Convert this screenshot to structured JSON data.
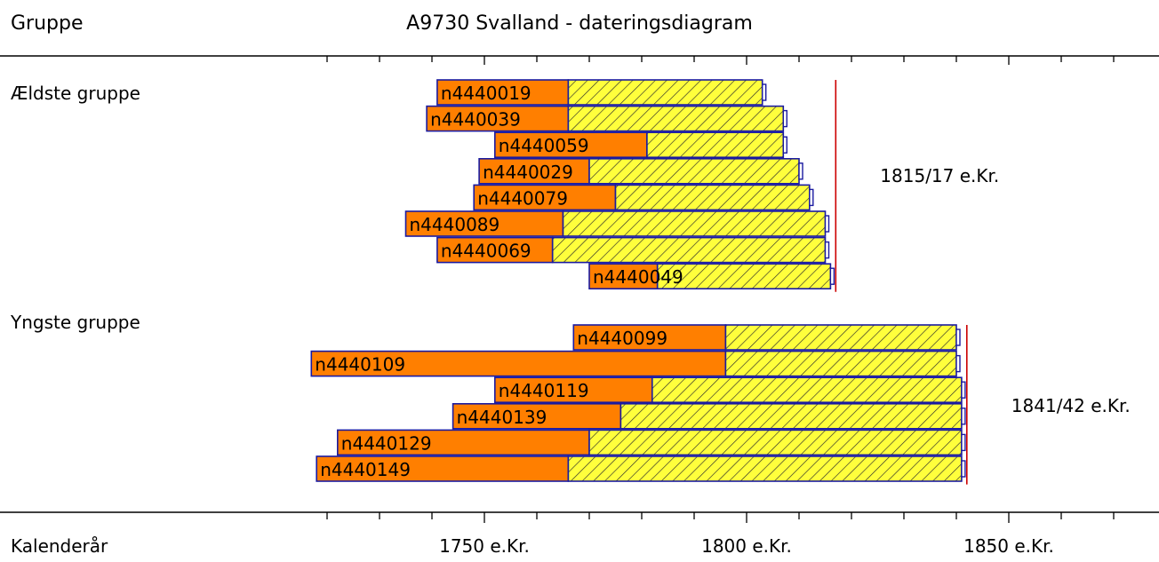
{
  "header": {
    "group_col": "Gruppe",
    "title": "A9730 Svalland - dateringsdiagram"
  },
  "footer": {
    "xlabel": "Kalenderår"
  },
  "colors": {
    "early": "#ff7f00",
    "late": "#ffff3c",
    "outline": "#1a1aa0",
    "felling": "#cc0000"
  },
  "chart_data": {
    "type": "bar",
    "title": "A9730 Svalland - dateringsdiagram",
    "xlabel": "Kalenderår",
    "xlim": [
      1717,
      1878
    ],
    "x_ticks": [
      {
        "value": 1750,
        "label": "1750 e.Kr."
      },
      {
        "value": 1800,
        "label": "1800 e.Kr."
      },
      {
        "value": 1850,
        "label": "1850 e.Kr."
      }
    ],
    "groups": [
      {
        "name": "Ældste gruppe",
        "felling_year": 1817,
        "felling_label": "1815/17 e.Kr.",
        "samples": [
          {
            "id": "n4440019",
            "start": 1741,
            "mid": 1766,
            "end": 1803
          },
          {
            "id": "n4440039",
            "start": 1739,
            "mid": 1766,
            "end": 1807
          },
          {
            "id": "n4440059",
            "start": 1752,
            "mid": 1781,
            "end": 1807
          },
          {
            "id": "n4440029",
            "start": 1749,
            "mid": 1770,
            "end": 1810
          },
          {
            "id": "n4440079",
            "start": 1748,
            "mid": 1775,
            "end": 1812
          },
          {
            "id": "n4440089",
            "start": 1735,
            "mid": 1765,
            "end": 1815
          },
          {
            "id": "n4440069",
            "start": 1741,
            "mid": 1763,
            "end": 1815
          },
          {
            "id": "n4440049",
            "start": 1770,
            "mid": 1783,
            "end": 1816
          }
        ]
      },
      {
        "name": "Yngste gruppe",
        "felling_year": 1842,
        "felling_label": "1841/42 e.Kr.",
        "samples": [
          {
            "id": "n4440099",
            "start": 1767,
            "mid": 1796,
            "end": 1840
          },
          {
            "id": "n4440109",
            "start": 1717,
            "mid": 1796,
            "end": 1840
          },
          {
            "id": "n4440119",
            "start": 1752,
            "mid": 1782,
            "end": 1841
          },
          {
            "id": "n4440139",
            "start": 1744,
            "mid": 1776,
            "end": 1841
          },
          {
            "id": "n4440129",
            "start": 1722,
            "mid": 1770,
            "end": 1841
          },
          {
            "id": "n4440149",
            "start": 1718,
            "mid": 1766,
            "end": 1841
          }
        ]
      }
    ]
  }
}
